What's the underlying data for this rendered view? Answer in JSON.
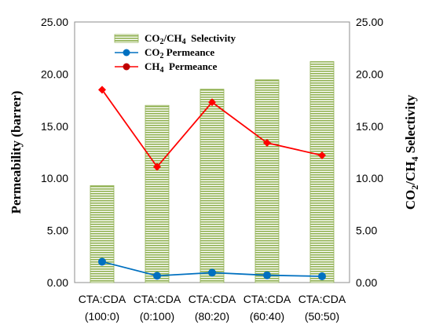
{
  "chart_data": {
    "type": "bar",
    "categories": [
      [
        "CTA:CDA",
        "(100:0)"
      ],
      [
        "CTA:CDA",
        "(0:100)"
      ],
      [
        "CTA:CDA",
        "(80:20)"
      ],
      [
        "CTA:CDA",
        "(60:40)"
      ],
      [
        "CTA:CDA",
        "(50:50)"
      ]
    ],
    "left_axis": {
      "label": "Permeability (barrer)",
      "ylim": [
        0,
        25
      ],
      "ticks": [
        "0.00",
        "5.00",
        "10.00",
        "15.00",
        "20.00",
        "25.00"
      ]
    },
    "right_axis": {
      "label": {
        "main": "CO",
        "sub1": "2",
        "mid": "/CH",
        "sub2": "4",
        "tail": " Selectivity"
      },
      "ylim": [
        0,
        25
      ],
      "ticks": [
        "0.00",
        "5.00",
        "10.00",
        "15.00",
        "20.00",
        "25.00"
      ]
    },
    "series": [
      {
        "kind": "bar",
        "axis": "right",
        "legend": {
          "main": "CO",
          "sub1": "2",
          "mid": "/CH",
          "sub2": "4",
          "tail": "  Selectivity"
        },
        "color": "#8fb050",
        "values": [
          9.3,
          17.0,
          18.55,
          19.45,
          21.2
        ]
      },
      {
        "kind": "line",
        "axis": "left",
        "marker": "circle",
        "legend": {
          "main": "CO",
          "sub1": "2",
          "tail": " Permeance"
        },
        "color": "#0070c0",
        "values": [
          2.0,
          0.65,
          0.95,
          0.7,
          0.6
        ]
      },
      {
        "kind": "line",
        "axis": "left",
        "marker": "diamond",
        "legend": {
          "main": "CH",
          "sub1": "4",
          "tail": "  Permeance"
        },
        "color": "#ff0000",
        "values": [
          18.5,
          11.1,
          17.3,
          13.4,
          12.2
        ]
      }
    ],
    "grid": false,
    "legend_position": "top-center"
  }
}
